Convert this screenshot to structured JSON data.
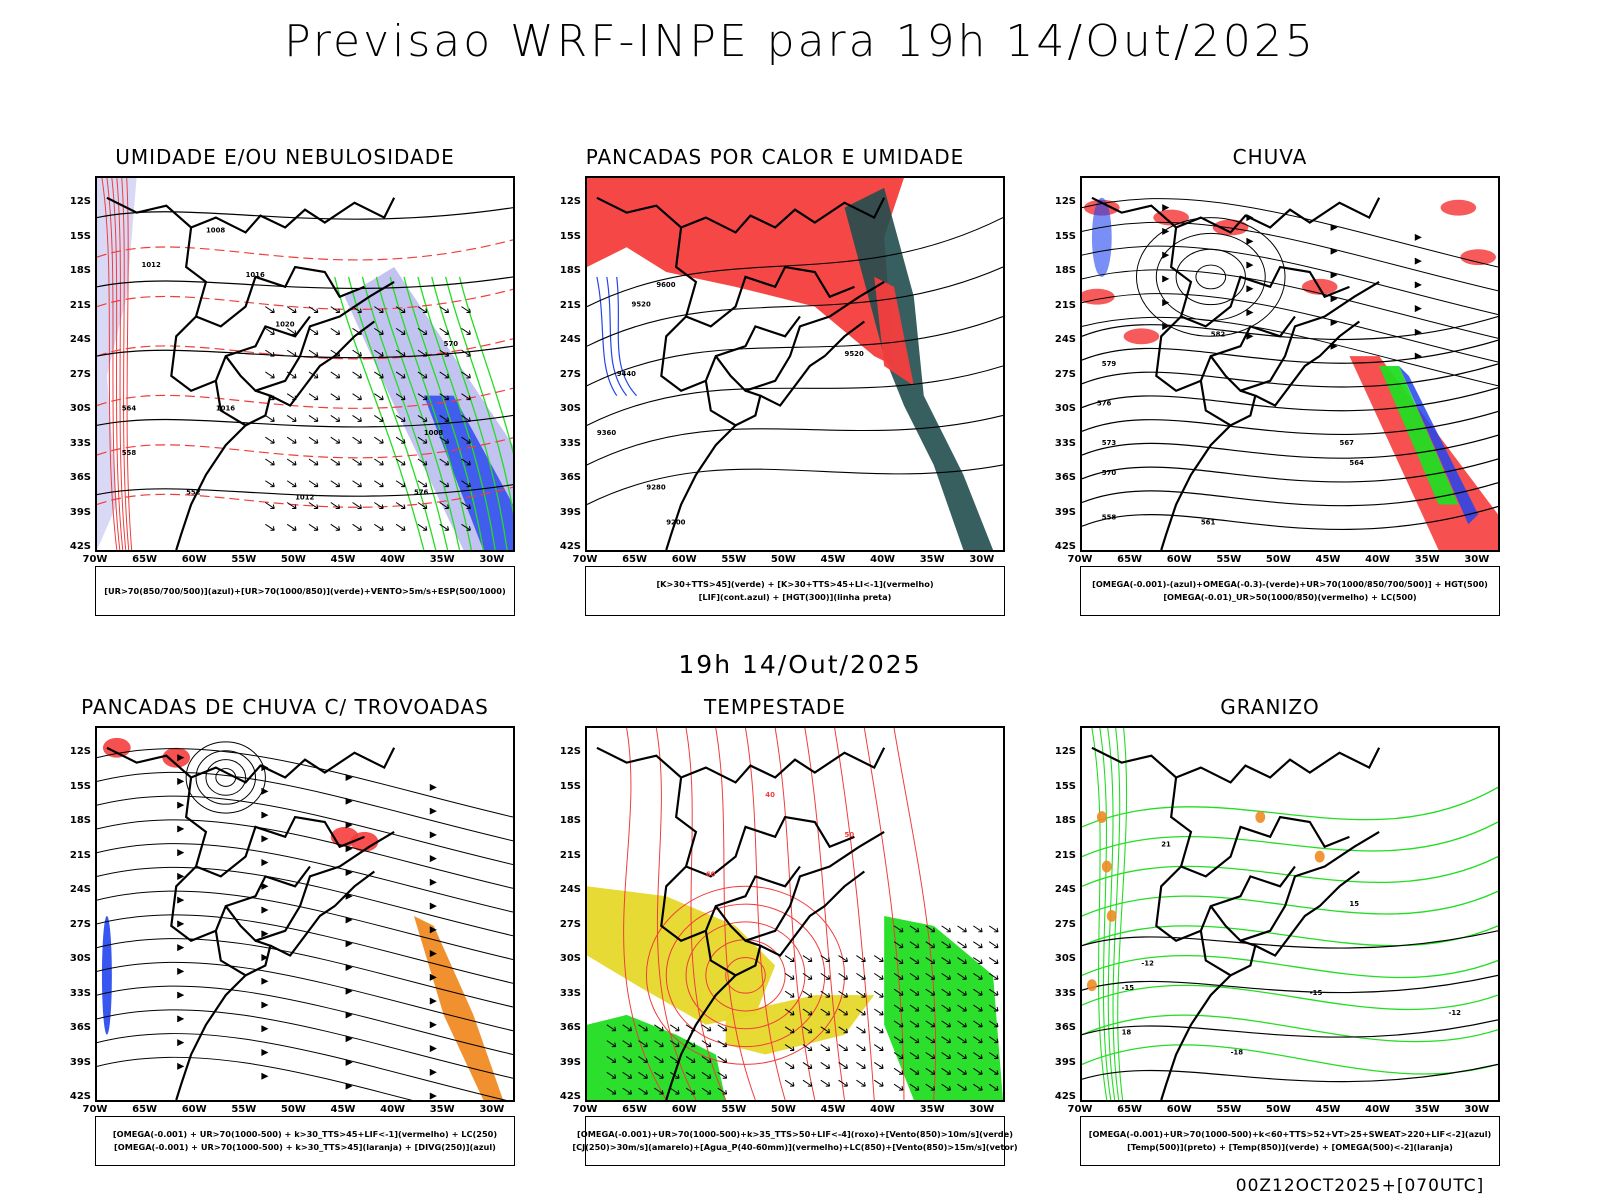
{
  "title": "Previsao WRF-INPE  para 19h 14/Out/2025",
  "mid_date": "19h 14/Out/2025",
  "footer": "00Z12OCT2025+[070UTC]",
  "axes": {
    "lat": [
      "12S",
      "15S",
      "18S",
      "21S",
      "24S",
      "27S",
      "30S",
      "33S",
      "36S",
      "39S",
      "42S"
    ],
    "lon": [
      "70W",
      "65W",
      "60W",
      "55W",
      "50W",
      "45W",
      "40W",
      "35W",
      "30W"
    ]
  },
  "colors": {
    "green": "#22dd22",
    "red": "#f53d3d",
    "blue": "#2244ee",
    "lavender": "#b4b4ee",
    "dark_teal": "#224e4e",
    "yellow": "#e6d82a",
    "orange": "#f08a24",
    "contour_red": "#f03c3c"
  },
  "panels": [
    {
      "id": "umidade",
      "title": "UMIDADE E/OU NEBULOSIDADE",
      "legend": [
        "[UR>70(850/700/500)](azul)+[UR>70(1000/850)](verde)+VENTO>5m/s+ESP(500/1000)"
      ],
      "contour_labels": [
        "1008",
        "1012",
        "1016",
        "1020",
        "1016",
        "1012",
        "1008",
        "576",
        "570",
        "564",
        "558",
        "552"
      ]
    },
    {
      "id": "pancadas_calor",
      "title": "PANCADAS POR CALOR E UMIDADE",
      "legend": [
        "[K>30+TTS>45](verde) + [K>30+TTS>45+LI<-1](vermelho)",
        "[LIF](cont.azul) + [HGT(300)](linha preta)"
      ],
      "contour_labels": [
        "9600",
        "9520",
        "9440",
        "9360",
        "9280",
        "9200",
        "9520"
      ]
    },
    {
      "id": "chuva",
      "title": "CHUVA",
      "legend": [
        "[OMEGA(-0.001)-(azul)+OMEGA(-0.3)-(verde)+UR>70(1000/850/700/500)] + HGT(500)",
        "[OMEGA(-0.01)_UR>50(1000/850)(vermelho) + LC(500)"
      ],
      "contour_labels": [
        "582",
        "579",
        "576",
        "573",
        "570",
        "567",
        "564",
        "561",
        "558"
      ]
    },
    {
      "id": "trovoadas",
      "title": "PANCADAS DE CHUVA C/ TROVOADAS",
      "legend": [
        "[OMEGA(-0.001) + UR>70(1000-500) + k>30_TTS>45+LIF<-1](vermelho) + LC(250)",
        "[OMEGA(-0.001) + UR>70(1000-500) + k>30_TTS>45](laranja) + [DIVG(250)](azul)"
      ],
      "contour_labels": []
    },
    {
      "id": "tempestade",
      "title": "TEMPESTADE",
      "legend": [
        "[OMEGA(-0.001)+UR>70(1000-500)+k>35_TTS>50+LIF<-4](roxo)+[Vento(850)>10m/s](verde)",
        "[CJ(250)>30m/s](amarelo)+[Agua_P(40-60mm)](vermelho)+LC(850)+[Vento(850)>15m/s](vetor)"
      ],
      "contour_labels": [
        "40",
        "50",
        "60"
      ]
    },
    {
      "id": "granizo",
      "title": "GRANIZO",
      "legend": [
        "[OMEGA(-0.001)+UR>70(1000-500)+k<60+TTS>52+VT>25+SWEAT>220+LIF<-2](azul)",
        "[Temp(500)](preto) + [Temp(850)](verde) + [OMEGA(500)<-2](laranja)"
      ],
      "contour_labels": [
        "-12",
        "-15",
        "-18",
        "-12",
        "-15",
        "18",
        "21",
        "15"
      ]
    }
  ]
}
